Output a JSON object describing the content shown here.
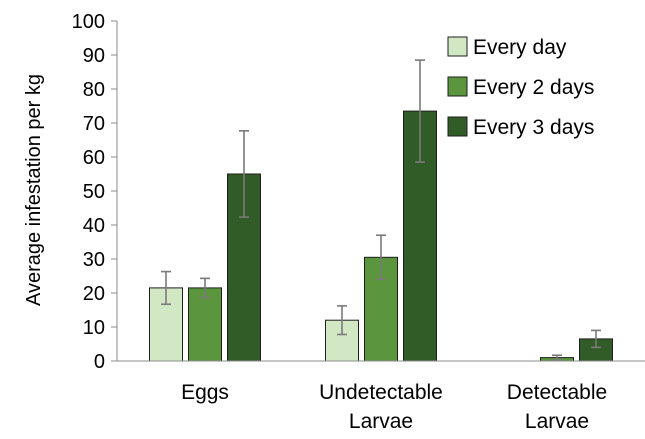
{
  "chart_data": {
    "type": "bar",
    "title": "",
    "xlabel": "",
    "ylabel": "Average infestation per kg",
    "ylim": [
      0,
      100
    ],
    "yticks": [
      0,
      10,
      20,
      30,
      40,
      50,
      60,
      70,
      80,
      90,
      100
    ],
    "grid": false,
    "legend_position": "top-right",
    "categories": [
      [
        "Eggs"
      ],
      [
        "Undetectable",
        "Larvae"
      ],
      [
        "Detectable",
        "Larvae"
      ]
    ],
    "series": [
      {
        "name": "Every day",
        "color": "#d2e8c4",
        "values": [
          21.5,
          12,
          0
        ],
        "errors": [
          4.8,
          4.2,
          0
        ]
      },
      {
        "name": "Every 2 days",
        "color": "#5b963f",
        "values": [
          21.5,
          30.5,
          1
        ],
        "errors": [
          2.8,
          6.5,
          0.7
        ]
      },
      {
        "name": "Every 3 days",
        "color": "#325c27",
        "values": [
          55,
          73.5,
          6.5
        ],
        "errors": [
          12.7,
          15,
          2.5
        ]
      }
    ]
  }
}
